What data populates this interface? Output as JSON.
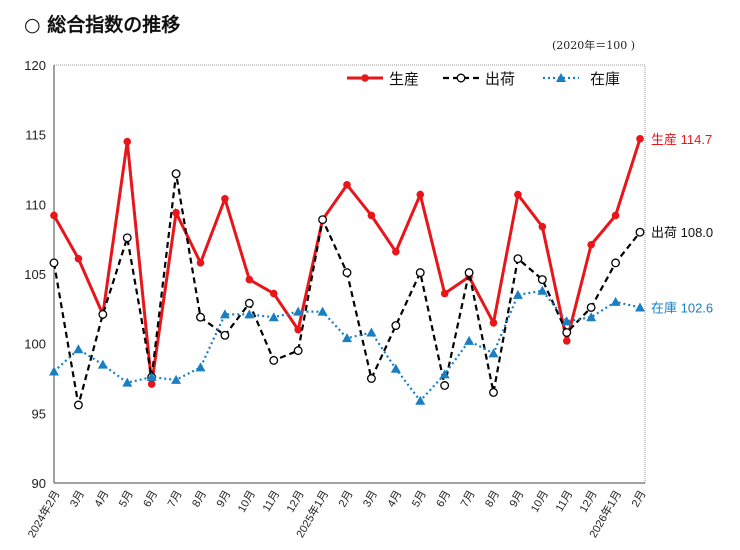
{
  "title": "○ 総合指数の推移",
  "unit_note": "(2020年＝100 )",
  "chart_data": {
    "type": "line",
    "title": "総合指数の推移",
    "categories": [
      "2024年2月",
      "3月",
      "4月",
      "5月",
      "6月",
      "7月",
      "8月",
      "9月",
      "10月",
      "11月",
      "12月",
      "2025年1月",
      "2月",
      "3月",
      "4月",
      "5月",
      "6月",
      "7月",
      "8月",
      "9月",
      "10月",
      "11月",
      "12月",
      "2026年1月",
      "2月"
    ],
    "ylim": [
      90,
      120
    ],
    "yticks": [
      90,
      95,
      100,
      105,
      110,
      115,
      120
    ],
    "grid": false,
    "legend": "top-right",
    "series": [
      {
        "name": "生産",
        "color": "#e8161b",
        "style": "solid",
        "marker": "filled-circle",
        "values": [
          109.2,
          106.1,
          102.1,
          114.5,
          97.1,
          109.4,
          105.8,
          110.4,
          104.6,
          103.6,
          101.0,
          108.9,
          111.4,
          109.2,
          106.6,
          110.7,
          103.6,
          104.8,
          101.5,
          110.7,
          108.4,
          100.2,
          107.1,
          109.2,
          114.7
        ],
        "end_label": "生産 114.7"
      },
      {
        "name": "出荷",
        "color": "#000000",
        "style": "dashed",
        "marker": "open-circle",
        "values": [
          105.8,
          95.6,
          102.1,
          107.6,
          97.6,
          112.2,
          101.9,
          100.6,
          102.9,
          98.8,
          99.5,
          108.9,
          105.1,
          97.5,
          101.3,
          105.1,
          97.0,
          105.1,
          96.5,
          106.1,
          104.6,
          100.8,
          102.6,
          105.8,
          108.0
        ],
        "end_label": "出荷 108.0"
      },
      {
        "name": "在庫",
        "color": "#1a7fc1",
        "style": "dotted",
        "marker": "triangle",
        "values": [
          98.0,
          99.6,
          98.5,
          97.2,
          97.6,
          97.4,
          98.3,
          102.1,
          102.1,
          101.9,
          102.3,
          102.3,
          100.4,
          100.8,
          98.2,
          95.9,
          97.8,
          100.2,
          99.3,
          103.5,
          103.8,
          101.6,
          101.9,
          103.0,
          102.6
        ],
        "end_label": "在庫 102.6"
      }
    ]
  }
}
